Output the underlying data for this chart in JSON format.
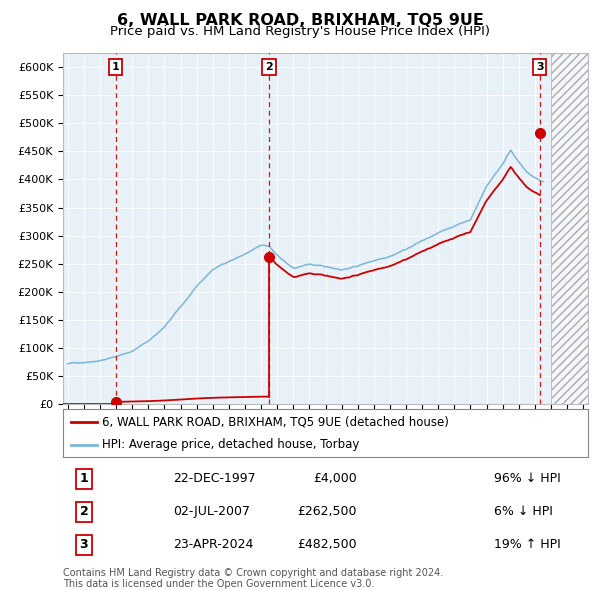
{
  "title": "6, WALL PARK ROAD, BRIXHAM, TQ5 9UE",
  "subtitle": "Price paid vs. HM Land Registry's House Price Index (HPI)",
  "ylim": [
    0,
    620000
  ],
  "xlim_start": 1994.7,
  "xlim_end": 2027.3,
  "plot_bg": "#e8f0f8",
  "transactions": [
    {
      "date_str": "22-DEC-1997",
      "date_num": 1997.97,
      "price": 4000,
      "label": "1",
      "pct": "96%",
      "dir": "↓"
    },
    {
      "date_str": "02-JUL-2007",
      "date_num": 2007.5,
      "price": 262500,
      "label": "2",
      "pct": "6%",
      "dir": "↓"
    },
    {
      "date_str": "23-APR-2024",
      "date_num": 2024.31,
      "price": 482500,
      "label": "3",
      "pct": "19%",
      "dir": "↑"
    }
  ],
  "hpi_line_color": "#7ab8d9",
  "price_line_color": "#cc0000",
  "marker_color": "#cc0000",
  "vline_color": "#cc0000",
  "hatch_start": 2025.0,
  "footnote": "Contains HM Land Registry data © Crown copyright and database right 2024.\nThis data is licensed under the Open Government Licence v3.0.",
  "legend_label_red": "6, WALL PARK ROAD, BRIXHAM, TQ5 9UE (detached house)",
  "legend_label_blue": "HPI: Average price, detached house, Torbay"
}
